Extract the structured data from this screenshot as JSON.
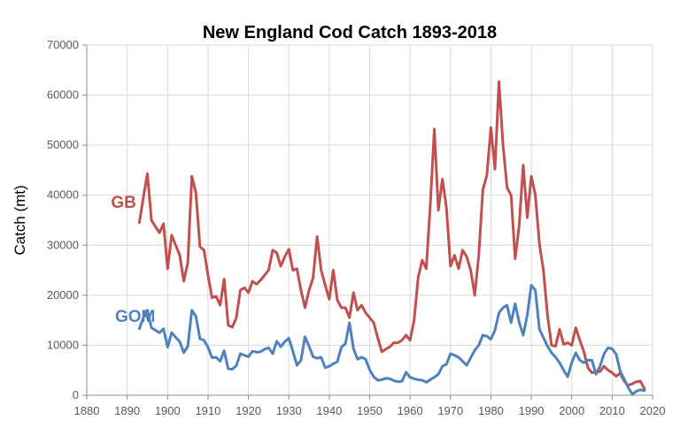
{
  "chart_data": {
    "type": "line",
    "title": "New England Cod Catch 1893-2018",
    "xlabel": "",
    "ylabel": "Catch (mt)",
    "xlim": [
      1880,
      2020
    ],
    "ylim": [
      0,
      70000
    ],
    "x_ticks": [
      "1880",
      "1890",
      "1900",
      "1910",
      "1920",
      "1930",
      "1940",
      "1950",
      "1960",
      "1970",
      "1980",
      "1990",
      "2000",
      "2010",
      "2020"
    ],
    "y_ticks": [
      "0",
      "10000",
      "20000",
      "30000",
      "40000",
      "50000",
      "60000",
      "70000"
    ],
    "grid": true,
    "legend": "inline labels",
    "series": [
      {
        "name": "GB",
        "color": "#c0504d",
        "points": [
          [
            1893,
            34500
          ],
          [
            1894,
            39500
          ],
          [
            1895,
            44300
          ],
          [
            1896,
            35000
          ],
          [
            1897,
            33700
          ],
          [
            1898,
            32500
          ],
          [
            1899,
            34300
          ],
          [
            1900,
            25300
          ],
          [
            1901,
            32000
          ],
          [
            1902,
            30000
          ],
          [
            1903,
            28000
          ],
          [
            1904,
            22800
          ],
          [
            1905,
            26500
          ],
          [
            1906,
            43800
          ],
          [
            1907,
            40500
          ],
          [
            1908,
            29700
          ],
          [
            1909,
            29000
          ],
          [
            1910,
            24000
          ],
          [
            1911,
            19500
          ],
          [
            1912,
            19800
          ],
          [
            1913,
            18000
          ],
          [
            1914,
            23200
          ],
          [
            1915,
            14000
          ],
          [
            1916,
            13600
          ],
          [
            1917,
            15500
          ],
          [
            1918,
            21000
          ],
          [
            1919,
            21500
          ],
          [
            1920,
            20500
          ],
          [
            1921,
            22800
          ],
          [
            1922,
            22200
          ],
          [
            1923,
            23000
          ],
          [
            1924,
            24000
          ],
          [
            1925,
            25000
          ],
          [
            1926,
            29000
          ],
          [
            1927,
            28500
          ],
          [
            1928,
            25800
          ],
          [
            1929,
            27700
          ],
          [
            1930,
            29200
          ],
          [
            1931,
            25000
          ],
          [
            1932,
            25300
          ],
          [
            1933,
            21000
          ],
          [
            1934,
            17500
          ],
          [
            1935,
            21000
          ],
          [
            1936,
            23500
          ],
          [
            1937,
            31700
          ],
          [
            1938,
            25000
          ],
          [
            1939,
            22000
          ],
          [
            1940,
            19200
          ],
          [
            1941,
            25000
          ],
          [
            1942,
            19000
          ],
          [
            1943,
            17500
          ],
          [
            1944,
            17500
          ],
          [
            1945,
            15500
          ],
          [
            1946,
            20500
          ],
          [
            1947,
            17000
          ],
          [
            1948,
            18000
          ],
          [
            1949,
            16500
          ],
          [
            1950,
            15500
          ],
          [
            1951,
            14500
          ],
          [
            1952,
            11500
          ],
          [
            1953,
            8700
          ],
          [
            1954,
            9200
          ],
          [
            1955,
            9700
          ],
          [
            1956,
            10500
          ],
          [
            1957,
            10500
          ],
          [
            1958,
            11000
          ],
          [
            1959,
            12000
          ],
          [
            1960,
            11000
          ],
          [
            1961,
            15000
          ],
          [
            1962,
            23500
          ],
          [
            1963,
            27000
          ],
          [
            1964,
            25300
          ],
          [
            1965,
            38000
          ],
          [
            1966,
            53200
          ],
          [
            1967,
            37000
          ],
          [
            1968,
            43200
          ],
          [
            1969,
            37500
          ],
          [
            1970,
            25800
          ],
          [
            1971,
            28000
          ],
          [
            1972,
            25300
          ],
          [
            1973,
            29000
          ],
          [
            1974,
            27700
          ],
          [
            1975,
            25000
          ],
          [
            1976,
            20000
          ],
          [
            1977,
            28000
          ],
          [
            1978,
            41000
          ],
          [
            1979,
            44000
          ],
          [
            1980,
            53500
          ],
          [
            1981,
            45200
          ],
          [
            1982,
            62700
          ],
          [
            1983,
            50000
          ],
          [
            1984,
            41500
          ],
          [
            1985,
            40000
          ],
          [
            1986,
            27300
          ],
          [
            1987,
            34000
          ],
          [
            1988,
            46000
          ],
          [
            1989,
            35500
          ],
          [
            1990,
            43800
          ],
          [
            1991,
            40000
          ],
          [
            1992,
            30300
          ],
          [
            1993,
            25000
          ],
          [
            1994,
            16000
          ],
          [
            1995,
            10000
          ],
          [
            1996,
            9800
          ],
          [
            1997,
            13200
          ],
          [
            1998,
            10200
          ],
          [
            1999,
            10500
          ],
          [
            2000,
            10000
          ],
          [
            2001,
            13500
          ],
          [
            2002,
            11000
          ],
          [
            2003,
            8700
          ],
          [
            2004,
            5500
          ],
          [
            2005,
            4500
          ],
          [
            2006,
            4700
          ],
          [
            2007,
            4700
          ],
          [
            2008,
            5800
          ],
          [
            2009,
            5000
          ],
          [
            2010,
            4500
          ],
          [
            2011,
            3800
          ],
          [
            2012,
            4400
          ],
          [
            2013,
            2800
          ],
          [
            2014,
            2000
          ],
          [
            2015,
            2300
          ],
          [
            2016,
            2700
          ],
          [
            2017,
            2800
          ],
          [
            2018,
            1300
          ]
        ]
      },
      {
        "name": "GOM",
        "color": "#4f81bd",
        "points": [
          [
            1893,
            13300
          ],
          [
            1894,
            15500
          ],
          [
            1895,
            17000
          ],
          [
            1896,
            13500
          ],
          [
            1897,
            13000
          ],
          [
            1898,
            12500
          ],
          [
            1899,
            13300
          ],
          [
            1900,
            9600
          ],
          [
            1901,
            12500
          ],
          [
            1902,
            11600
          ],
          [
            1903,
            10700
          ],
          [
            1904,
            8500
          ],
          [
            1905,
            9800
          ],
          [
            1906,
            17000
          ],
          [
            1907,
            15800
          ],
          [
            1908,
            11300
          ],
          [
            1909,
            11000
          ],
          [
            1910,
            9600
          ],
          [
            1911,
            7500
          ],
          [
            1912,
            7600
          ],
          [
            1913,
            6800
          ],
          [
            1914,
            8900
          ],
          [
            1915,
            5300
          ],
          [
            1916,
            5200
          ],
          [
            1917,
            5900
          ],
          [
            1918,
            8300
          ],
          [
            1919,
            8000
          ],
          [
            1920,
            7700
          ],
          [
            1921,
            8800
          ],
          [
            1922,
            8600
          ],
          [
            1923,
            8700
          ],
          [
            1924,
            9200
          ],
          [
            1925,
            9500
          ],
          [
            1926,
            8300
          ],
          [
            1927,
            10800
          ],
          [
            1928,
            9700
          ],
          [
            1929,
            10700
          ],
          [
            1930,
            11400
          ],
          [
            1931,
            8800
          ],
          [
            1932,
            6000
          ],
          [
            1933,
            7000
          ],
          [
            1934,
            11700
          ],
          [
            1935,
            9800
          ],
          [
            1936,
            7700
          ],
          [
            1937,
            7400
          ],
          [
            1938,
            7600
          ],
          [
            1939,
            5500
          ],
          [
            1940,
            5800
          ],
          [
            1941,
            6300
          ],
          [
            1942,
            6700
          ],
          [
            1943,
            9600
          ],
          [
            1944,
            10300
          ],
          [
            1945,
            14500
          ],
          [
            1946,
            9300
          ],
          [
            1947,
            7200
          ],
          [
            1948,
            7600
          ],
          [
            1949,
            7200
          ],
          [
            1950,
            5100
          ],
          [
            1951,
            3700
          ],
          [
            1952,
            3000
          ],
          [
            1953,
            3100
          ],
          [
            1954,
            3400
          ],
          [
            1955,
            3300
          ],
          [
            1956,
            2900
          ],
          [
            1957,
            2700
          ],
          [
            1958,
            2800
          ],
          [
            1959,
            4600
          ],
          [
            1960,
            3600
          ],
          [
            1961,
            3300
          ],
          [
            1962,
            3100
          ],
          [
            1963,
            3000
          ],
          [
            1964,
            2600
          ],
          [
            1965,
            3100
          ],
          [
            1966,
            3600
          ],
          [
            1967,
            4200
          ],
          [
            1968,
            5800
          ],
          [
            1969,
            6200
          ],
          [
            1970,
            8300
          ],
          [
            1971,
            8000
          ],
          [
            1972,
            7600
          ],
          [
            1973,
            6800
          ],
          [
            1974,
            6000
          ],
          [
            1975,
            7500
          ],
          [
            1976,
            9000
          ],
          [
            1977,
            10000
          ],
          [
            1978,
            12000
          ],
          [
            1979,
            11800
          ],
          [
            1980,
            11200
          ],
          [
            1981,
            13000
          ],
          [
            1982,
            16500
          ],
          [
            1983,
            17500
          ],
          [
            1984,
            18000
          ],
          [
            1985,
            14500
          ],
          [
            1986,
            18300
          ],
          [
            1987,
            14600
          ],
          [
            1988,
            12000
          ],
          [
            1989,
            16000
          ],
          [
            1990,
            22000
          ],
          [
            1991,
            21000
          ],
          [
            1992,
            13200
          ],
          [
            1993,
            11500
          ],
          [
            1994,
            9800
          ],
          [
            1995,
            8500
          ],
          [
            1996,
            7600
          ],
          [
            1997,
            6500
          ],
          [
            1998,
            5000
          ],
          [
            1999,
            3700
          ],
          [
            2000,
            6500
          ],
          [
            2001,
            8500
          ],
          [
            2002,
            7000
          ],
          [
            2003,
            6500
          ],
          [
            2004,
            7000
          ],
          [
            2005,
            7000
          ],
          [
            2006,
            4200
          ],
          [
            2007,
            5800
          ],
          [
            2008,
            8300
          ],
          [
            2009,
            9500
          ],
          [
            2010,
            9300
          ],
          [
            2011,
            8200
          ],
          [
            2012,
            4800
          ],
          [
            2013,
            3200
          ],
          [
            2014,
            1500
          ],
          [
            2015,
            200
          ],
          [
            2016,
            800
          ],
          [
            2017,
            1100
          ],
          [
            2018,
            900
          ]
        ]
      }
    ]
  }
}
